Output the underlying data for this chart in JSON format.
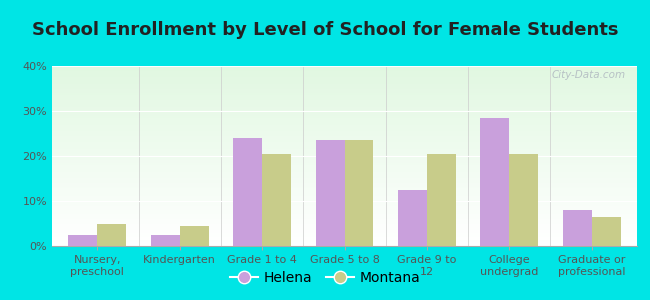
{
  "title": "School Enrollment by Level of School for Female Students",
  "categories": [
    "Nursery,\npreschool",
    "Kindergarten",
    "Grade 1 to 4",
    "Grade 5 to 8",
    "Grade 9 to\n12",
    "College\nundergrad",
    "Graduate or\nprofessional"
  ],
  "helena_values": [
    2.5,
    2.5,
    24.0,
    23.5,
    12.5,
    28.5,
    8.0
  ],
  "montana_values": [
    5.0,
    4.5,
    20.5,
    23.5,
    20.5,
    20.5,
    6.5
  ],
  "helena_color": "#c9a0dc",
  "montana_color": "#c8cc8a",
  "background_color": "#00e5e5",
  "ylim": [
    0,
    40
  ],
  "yticks": [
    0,
    10,
    20,
    30,
    40
  ],
  "ytick_labels": [
    "0%",
    "10%",
    "20%",
    "30%",
    "40%"
  ],
  "title_fontsize": 13,
  "tick_fontsize": 8,
  "legend_fontsize": 10,
  "bar_width": 0.35,
  "watermark": "City-Data.com"
}
